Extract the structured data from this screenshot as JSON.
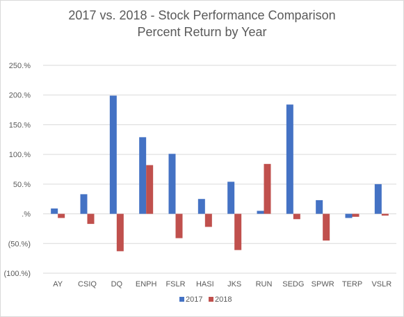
{
  "chart_data": {
    "type": "bar",
    "title": "2017 vs. 2018 - Stock Performance Comparison",
    "subtitle": "Percent Return by Year",
    "categories": [
      "AY",
      "CSIQ",
      "DQ",
      "ENPH",
      "FSLR",
      "HASI",
      "JKS",
      "RUN",
      "SEDG",
      "SPWR",
      "TERP",
      "VSLR"
    ],
    "series": [
      {
        "name": "2017",
        "color": "#4472c4",
        "values": [
          9,
          33,
          199,
          129,
          101,
          25,
          54,
          5,
          184,
          23,
          -7,
          50
        ]
      },
      {
        "name": "2018",
        "color": "#c0504d",
        "values": [
          -7,
          -17,
          -63,
          82,
          -41,
          -22,
          -61,
          84,
          -9,
          -45,
          -5,
          -3
        ]
      }
    ],
    "yticks": [
      250,
      200,
      150,
      100,
      50,
      0,
      -50,
      -100
    ],
    "ytick_labels": [
      "250.%",
      "200.%",
      "150.%",
      "100.%",
      "50.%",
      ".%",
      "(50.%)",
      "(100.%)"
    ],
    "ylim": [
      -100,
      250
    ],
    "grid": true,
    "legend": "bottom"
  }
}
